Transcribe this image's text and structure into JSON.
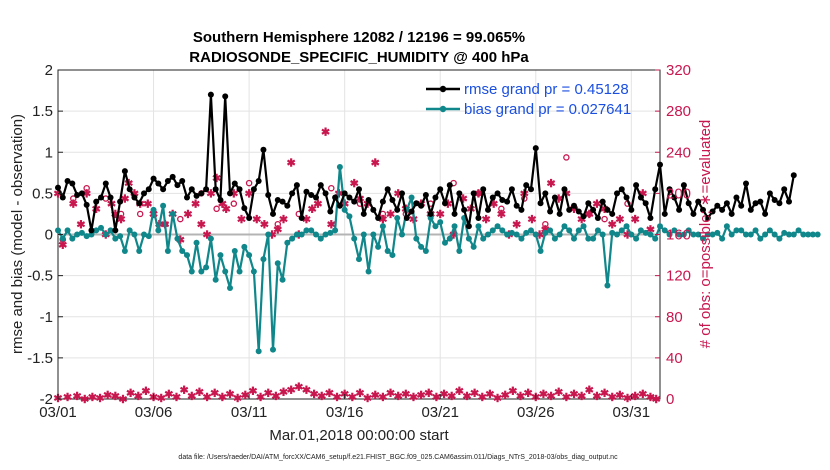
{
  "chart_data": {
    "type": "line",
    "title": "Southern Hemisphere 12082 / 12196 = 99.065%",
    "subtitle": "RADIOSONDE_SPECIFIC_HUMIDITY @ 400 hPa",
    "xlabel": "Mar.01,2018 00:00:00 start",
    "ylabel_left": "rmse and bias (model - observation)",
    "ylabel_right": "# of obs: o=possible; ∗=evaluated",
    "footnote": "data file: /Users/raeder/DAI/ATM_forcXX/CAM6_setup/f.e21.FHIST_BGC.f09_025.CAM6assim.011/Diags_NTrS_2018-03/obs_diag_output.nc",
    "xlim": [
      0,
      31.5
    ],
    "ylim_left": [
      -2,
      2
    ],
    "ylim_right": [
      0,
      320
    ],
    "x_ticks": [
      0,
      5,
      10,
      15,
      20,
      25,
      30
    ],
    "x_tick_labels": [
      "03/01",
      "03/06",
      "03/11",
      "03/16",
      "03/21",
      "03/26",
      "03/31"
    ],
    "y_left_ticks": [
      -2,
      -1.5,
      -1,
      -0.5,
      0,
      0.5,
      1,
      1.5,
      2
    ],
    "y_left_tick_labels": [
      "-2",
      "-1.5",
      "-1",
      "-0.5",
      "0",
      "0.5",
      "1",
      "1.5",
      "2"
    ],
    "y_right_ticks": [
      0,
      40,
      80,
      120,
      160,
      200,
      240,
      280,
      320
    ],
    "y_right_tick_labels": [
      "0",
      "40",
      "80",
      "120",
      "160",
      "200",
      "240",
      "280",
      "320"
    ],
    "grid": true,
    "legend_position": "top-right",
    "colors": {
      "rmse": "#000000",
      "bias": "#10878a",
      "obs": "#c8174f",
      "legend_text": "#1a4fe0",
      "zero_line": "#b4b4b4",
      "grid": "#e3e3e3"
    },
    "time_step_days": 0.25,
    "series": [
      {
        "name": "rmse",
        "legend": "rmse grand pr = 0.45128",
        "values": [
          0.57,
          0.45,
          0.65,
          0.62,
          0.48,
          0.5,
          0.36,
          0.05,
          0.4,
          0.45,
          0.62,
          0.45,
          0.05,
          0.4,
          0.77,
          0.55,
          0.45,
          0.38,
          0.5,
          0.55,
          0.68,
          0.62,
          0.55,
          0.65,
          0.7,
          0.6,
          0.65,
          0.45,
          0.55,
          0.47,
          0.5,
          0.55,
          1.7,
          0.55,
          0.42,
          1.68,
          0.5,
          0.62,
          0.55,
          0.32,
          0.2,
          0.55,
          0.65,
          1.03,
          0.48,
          0.25,
          0.42,
          0.4,
          0.35,
          0.5,
          0.6,
          0.2,
          0.52,
          0.48,
          0.45,
          0.6,
          0.5,
          0.28,
          0.45,
          0.35,
          0.5,
          0.45,
          0.4,
          0.55,
          0.25,
          0.42,
          0.3,
          0.2,
          0.4,
          0.55,
          0.42,
          0.3,
          0.5,
          0.2,
          0.28,
          0.38,
          0.35,
          0.48,
          0.25,
          0.45,
          0.55,
          0.38,
          0.6,
          0.25,
          0.5,
          0.3,
          0.1,
          0.5,
          0.2,
          0.55,
          0.3,
          0.45,
          0.5,
          0.42,
          0.4,
          0.55,
          0.35,
          0.3,
          0.6,
          0.55,
          1.05,
          0.38,
          0.5,
          0.28,
          0.45,
          0.25,
          0.55,
          0.3,
          0.35,
          0.28,
          0.22,
          0.38,
          0.3,
          0.2,
          0.4,
          0.3,
          0.25,
          0.5,
          0.55,
          0.45,
          0.3,
          0.6,
          0.45,
          0.38,
          0.2,
          0.55,
          0.85,
          0.25,
          0.55,
          0.45,
          0.3,
          0.6,
          0.38,
          0.25,
          0.4,
          0.3,
          0.2,
          0.28,
          0.35,
          0.3,
          0.38,
          0.25,
          0.45,
          0.35,
          0.62,
          0.3,
          0.38,
          0.4,
          0.25,
          0.5,
          0.42,
          0.38,
          0.55,
          0.4,
          0.72
        ]
      },
      {
        "name": "bias",
        "legend": "bias grand pr = 0.027641",
        "values": [
          0.05,
          -0.05,
          0.05,
          -0.05,
          0.0,
          0.02,
          -0.02,
          0.0,
          0.05,
          0.08,
          0.0,
          0.05,
          -0.05,
          -0.02,
          -0.2,
          0.05,
          0.0,
          -0.2,
          0.0,
          -0.02,
          0.3,
          0.05,
          0.35,
          -0.2,
          0.25,
          -0.05,
          -0.2,
          -0.25,
          -0.45,
          -0.1,
          -0.45,
          -0.4,
          -0.05,
          -0.55,
          -0.25,
          -0.45,
          -0.65,
          -0.2,
          -0.45,
          -0.15,
          -0.25,
          -0.45,
          -1.42,
          -0.3,
          0.0,
          -1.4,
          -0.35,
          -0.55,
          -0.1,
          -0.05,
          0.0,
          0.0,
          0.05,
          0.05,
          0.0,
          -0.05,
          0.0,
          0.02,
          0.05,
          0.82,
          0.3,
          0.22,
          -0.05,
          -0.3,
          0.0,
          -0.45,
          0.0,
          -0.15,
          0.1,
          -0.2,
          -0.25,
          0.2,
          0.0,
          0.3,
          0.45,
          -0.05,
          -0.15,
          -0.2,
          0.2,
          0.1,
          0.15,
          -0.1,
          -0.05,
          0.1,
          -0.2,
          0.2,
          -0.05,
          -0.15,
          0.1,
          -0.05,
          0.0,
          0.05,
          0.1,
          0.05,
          0.0,
          0.02,
          0.0,
          -0.05,
          0.02,
          0.05,
          0.0,
          -0.2,
          0.02,
          0.05,
          -0.05,
          0.0,
          0.1,
          0.05,
          -0.05,
          0.05,
          0.1,
          -0.05,
          -0.05,
          0.05,
          0.0,
          -0.62,
          0.02,
          0.0,
          0.05,
          0.1,
          0.0,
          -0.05,
          0.05,
          0.02,
          0.0,
          -0.05,
          0.1,
          0.05,
          0.0,
          0.05,
          0.0,
          0.0,
          0.05,
          0.0,
          0.0,
          -0.05,
          0.0,
          0.0,
          0.02,
          -0.05,
          0.1,
          0.0,
          0.05,
          0.05,
          0.0,
          0.0,
          0.05,
          -0.05,
          0.0,
          0.05,
          0.0,
          -0.05,
          0.02,
          0.0,
          0.0,
          0.05,
          0.0,
          0.0,
          0.0,
          0.0
        ]
      }
    ],
    "obs_evaluated": {
      "name": "observations evaluated",
      "x": [
        0.0,
        0.25,
        0.8,
        1.2,
        1.5,
        2.0,
        2.5,
        2.8,
        3.0,
        3.3,
        3.5,
        3.7,
        4.0,
        4.3,
        4.7,
        5.0,
        5.3,
        5.6,
        6.0,
        6.4,
        6.8,
        7.2,
        7.5,
        7.8,
        8.0,
        8.3,
        8.6,
        8.8,
        9.2,
        9.6,
        10.0,
        10.4,
        10.8,
        11.2,
        11.5,
        11.8,
        12.2,
        12.6,
        13.0,
        13.3,
        13.6,
        14.0,
        14.3,
        14.7,
        15.0,
        15.5,
        15.8,
        16.2,
        16.6,
        17.0,
        17.4,
        17.8,
        18.2,
        18.6,
        19.0,
        19.5,
        20.0,
        20.4,
        20.7,
        21.2,
        21.6,
        22.0,
        22.4,
        22.8,
        23.2,
        23.6,
        24.0,
        24.4,
        24.8,
        25.2,
        25.5,
        25.8,
        26.2,
        26.6,
        27.0,
        27.4,
        27.8,
        28.2,
        28.6,
        29.0,
        29.4,
        29.8,
        30.2,
        30.6,
        31.0
      ],
      "y": [
        200,
        150,
        190,
        170,
        200,
        185,
        160,
        190,
        180,
        175,
        195,
        210,
        200,
        190,
        190,
        180,
        170,
        170,
        180,
        155,
        180,
        190,
        170,
        160,
        200,
        215,
        190,
        185,
        200,
        175,
        200,
        175,
        170,
        160,
        165,
        175,
        230,
        160,
        175,
        185,
        190,
        260,
        170,
        200,
        190,
        210,
        195,
        190,
        230,
        175,
        180,
        200,
        185,
        175,
        190,
        180,
        180,
        190,
        160,
        195,
        185,
        200,
        175,
        190,
        180,
        160,
        170,
        200,
        175,
        160,
        165,
        210,
        195,
        200,
        185,
        175,
        180,
        190,
        185,
        170,
        175,
        160,
        175,
        200,
        165
      ]
    },
    "obs_possible": {
      "name": "observations possible",
      "x": [
        0.25,
        0.8,
        1.5,
        2.5,
        3.3,
        4.3,
        5.6,
        6.4,
        7.5,
        8.3,
        9.2,
        10.0,
        11.5,
        12.6,
        14.3,
        15.8,
        17.0,
        18.2,
        19.5,
        20.7,
        22.0,
        23.2,
        24.4,
        25.5,
        26.6,
        27.8,
        28.6,
        29.8
      ],
      "y": [
        155,
        195,
        205,
        195,
        180,
        180,
        170,
        175,
        200,
        185,
        190,
        210,
        170,
        180,
        205,
        190,
        180,
        180,
        190,
        210,
        200,
        185,
        195,
        170,
        235,
        180,
        175,
        190
      ]
    },
    "obs_bottom_row": [
      {
        "x": 0.0,
        "y": 1
      },
      {
        "x": 0.5,
        "y": 2
      },
      {
        "x": 1.0,
        "y": 3
      },
      {
        "x": 1.4,
        "y": 0
      },
      {
        "x": 1.8,
        "y": 2
      },
      {
        "x": 2.2,
        "y": 1
      },
      {
        "x": 2.6,
        "y": 4
      },
      {
        "x": 3.0,
        "y": 3
      },
      {
        "x": 3.4,
        "y": 0
      },
      {
        "x": 3.8,
        "y": 6
      },
      {
        "x": 4.2,
        "y": 3
      },
      {
        "x": 4.6,
        "y": 8
      },
      {
        "x": 5.0,
        "y": 2
      },
      {
        "x": 5.4,
        "y": 1
      },
      {
        "x": 5.8,
        "y": 5
      },
      {
        "x": 6.2,
        "y": 2
      },
      {
        "x": 6.6,
        "y": 9
      },
      {
        "x": 7.0,
        "y": 3
      },
      {
        "x": 7.4,
        "y": 7
      },
      {
        "x": 7.8,
        "y": 2
      },
      {
        "x": 8.2,
        "y": 6
      },
      {
        "x": 8.6,
        "y": 2
      },
      {
        "x": 9.0,
        "y": 5
      },
      {
        "x": 9.4,
        "y": 1
      },
      {
        "x": 9.8,
        "y": 4
      },
      {
        "x": 10.2,
        "y": 8
      },
      {
        "x": 10.6,
        "y": 2
      },
      {
        "x": 11.0,
        "y": 6
      },
      {
        "x": 11.4,
        "y": 3
      },
      {
        "x": 11.8,
        "y": 7
      },
      {
        "x": 12.2,
        "y": 9
      },
      {
        "x": 12.6,
        "y": 12
      },
      {
        "x": 13.0,
        "y": 9
      },
      {
        "x": 13.4,
        "y": 5
      },
      {
        "x": 13.8,
        "y": 3
      },
      {
        "x": 14.2,
        "y": 6
      },
      {
        "x": 14.6,
        "y": 2
      },
      {
        "x": 15.0,
        "y": 5
      },
      {
        "x": 15.4,
        "y": 2
      },
      {
        "x": 15.8,
        "y": 6
      },
      {
        "x": 16.2,
        "y": 1
      },
      {
        "x": 16.6,
        "y": 4
      },
      {
        "x": 17.0,
        "y": 2
      },
      {
        "x": 17.4,
        "y": 6
      },
      {
        "x": 17.8,
        "y": 3
      },
      {
        "x": 18.2,
        "y": 5
      },
      {
        "x": 18.6,
        "y": 2
      },
      {
        "x": 19.0,
        "y": 4
      },
      {
        "x": 19.4,
        "y": 6
      },
      {
        "x": 19.8,
        "y": 2
      },
      {
        "x": 20.2,
        "y": 5
      },
      {
        "x": 20.6,
        "y": 3
      },
      {
        "x": 21.0,
        "y": 8
      },
      {
        "x": 21.4,
        "y": 3
      },
      {
        "x": 21.8,
        "y": 6
      },
      {
        "x": 22.2,
        "y": 2
      },
      {
        "x": 22.6,
        "y": 5
      },
      {
        "x": 23.0,
        "y": 1
      },
      {
        "x": 23.4,
        "y": 4
      },
      {
        "x": 23.8,
        "y": 8
      },
      {
        "x": 24.2,
        "y": 3
      },
      {
        "x": 24.6,
        "y": 6
      },
      {
        "x": 25.0,
        "y": 2
      },
      {
        "x": 25.4,
        "y": 5
      },
      {
        "x": 25.8,
        "y": 3
      },
      {
        "x": 26.2,
        "y": 7
      },
      {
        "x": 26.6,
        "y": 2
      },
      {
        "x": 27.0,
        "y": 5
      },
      {
        "x": 27.4,
        "y": 3
      },
      {
        "x": 27.8,
        "y": 9
      },
      {
        "x": 28.2,
        "y": 3
      },
      {
        "x": 28.6,
        "y": 6
      },
      {
        "x": 29.0,
        "y": 2
      },
      {
        "x": 29.4,
        "y": 4
      },
      {
        "x": 29.8,
        "y": 1
      },
      {
        "x": 30.2,
        "y": 3
      },
      {
        "x": 30.6,
        "y": 5
      },
      {
        "x": 31.0,
        "y": 2
      },
      {
        "x": 31.3,
        "y": 0
      }
    ]
  }
}
